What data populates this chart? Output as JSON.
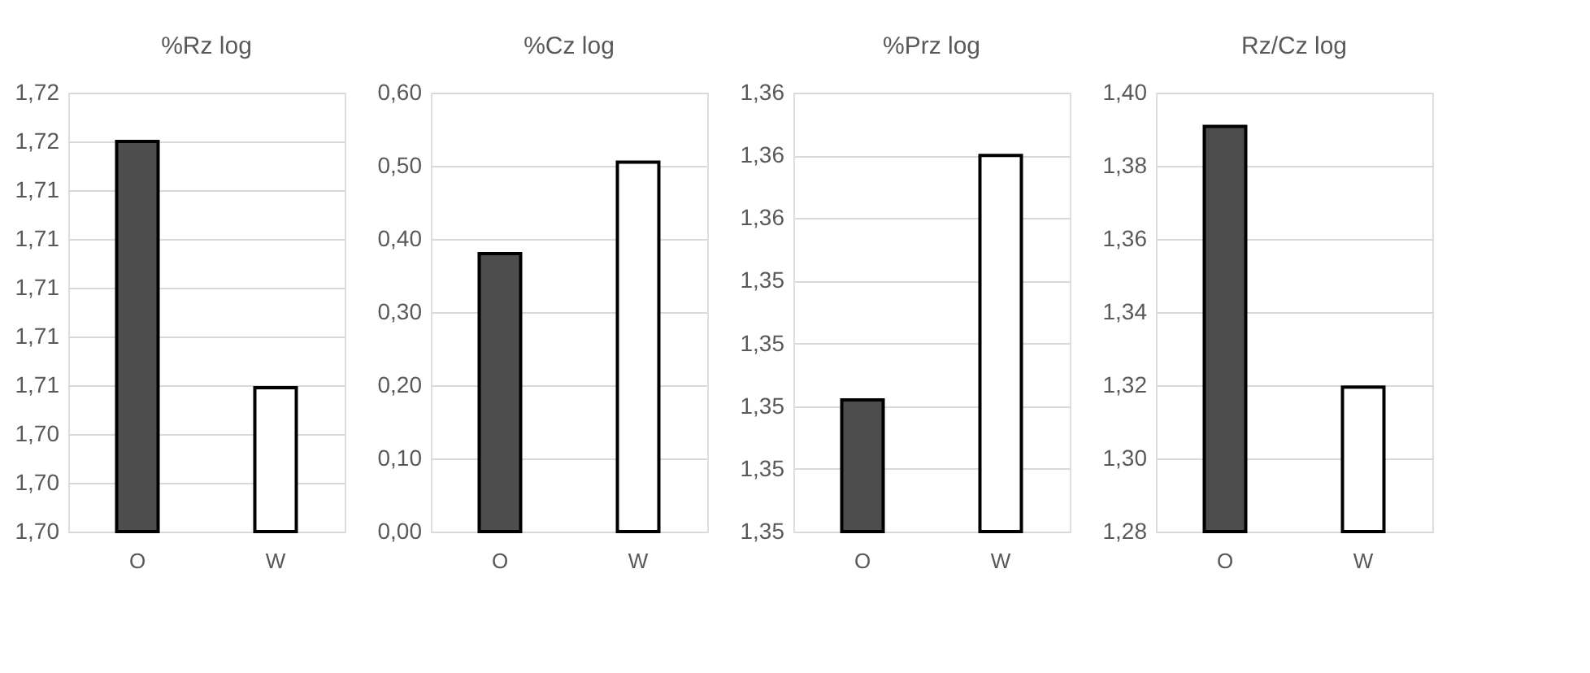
{
  "chart_data": [
    {
      "type": "bar",
      "title": "%Rz log",
      "categories": [
        "O",
        "W"
      ],
      "values": [
        1.716,
        1.7059
      ],
      "colors": [
        "#4d4d4d",
        "#ffffff"
      ],
      "ylim": [
        1.7,
        1.718
      ],
      "yticks": [
        {
          "value": 1.7,
          "label": "1,70"
        },
        {
          "value": 1.702,
          "label": "1,70"
        },
        {
          "value": 1.704,
          "label": "1,70"
        },
        {
          "value": 1.706,
          "label": "1,71"
        },
        {
          "value": 1.708,
          "label": "1,71"
        },
        {
          "value": 1.71,
          "label": "1,71"
        },
        {
          "value": 1.712,
          "label": "1,71"
        },
        {
          "value": 1.714,
          "label": "1,71"
        },
        {
          "value": 1.716,
          "label": "1,72"
        },
        {
          "value": 1.718,
          "label": "1,72"
        }
      ],
      "grid": "y"
    },
    {
      "type": "bar",
      "title": "%Cz log",
      "categories": [
        "O",
        "W"
      ],
      "values": [
        0.38,
        0.505
      ],
      "colors": [
        "#4d4d4d",
        "#ffffff"
      ],
      "ylim": [
        0,
        0.6
      ],
      "yticks": [
        {
          "value": 0,
          "label": "0,00"
        },
        {
          "value": 0.1,
          "label": "0,10"
        },
        {
          "value": 0.2,
          "label": "0,20"
        },
        {
          "value": 0.3,
          "label": "0,30"
        },
        {
          "value": 0.4,
          "label": "0,40"
        },
        {
          "value": 0.5,
          "label": "0,50"
        },
        {
          "value": 0.6,
          "label": "0,60"
        }
      ],
      "grid": "y"
    },
    {
      "type": "bar",
      "title": "%Prz log",
      "categories": [
        "O",
        "W"
      ],
      "values": [
        1.3521,
        1.356
      ],
      "colors": [
        "#4d4d4d",
        "#ffffff"
      ],
      "ylim": [
        1.35,
        1.357
      ],
      "yticks": [
        {
          "value": 1.35,
          "label": "1,35"
        },
        {
          "value": 1.351,
          "label": "1,35"
        },
        {
          "value": 1.352,
          "label": "1,35"
        },
        {
          "value": 1.353,
          "label": "1,35"
        },
        {
          "value": 1.354,
          "label": "1,35"
        },
        {
          "value": 1.355,
          "label": "1,36"
        },
        {
          "value": 1.356,
          "label": "1,36"
        },
        {
          "value": 1.357,
          "label": "1,36"
        }
      ],
      "grid": "y"
    },
    {
      "type": "bar",
      "title": "Rz/Cz log",
      "categories": [
        "O",
        "W"
      ],
      "values": [
        1.3908,
        1.3195
      ],
      "colors": [
        "#4d4d4d",
        "#ffffff"
      ],
      "ylim": [
        1.28,
        1.4
      ],
      "yticks": [
        {
          "value": 1.28,
          "label": "1,28"
        },
        {
          "value": 1.3,
          "label": "1,30"
        },
        {
          "value": 1.32,
          "label": "1,32"
        },
        {
          "value": 1.34,
          "label": "1,34"
        },
        {
          "value": 1.36,
          "label": "1,36"
        },
        {
          "value": 1.38,
          "label": "1,38"
        },
        {
          "value": 1.4,
          "label": "1,40"
        }
      ],
      "grid": "y"
    }
  ]
}
